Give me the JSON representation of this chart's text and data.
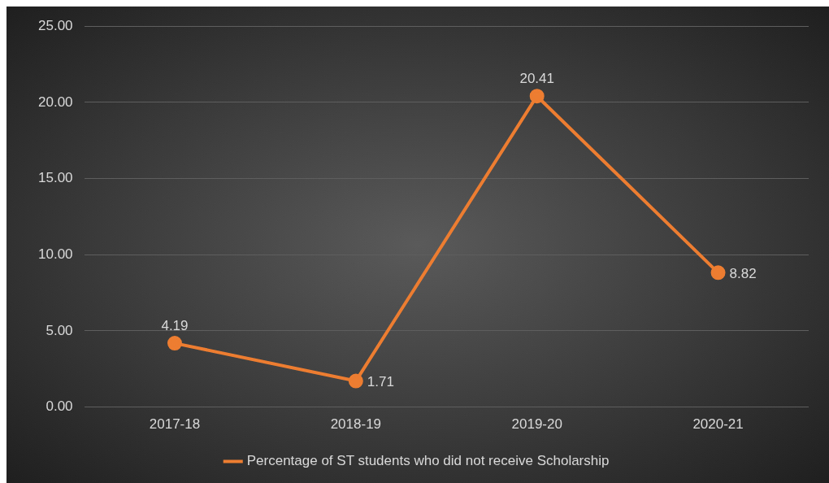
{
  "chart_data": {
    "type": "line",
    "categories": [
      "2017-18",
      "2018-19",
      "2019-20",
      "2020-21"
    ],
    "series": [
      {
        "name": "Percentage of ST students who did not receive Scholarship",
        "color": "#ed7d31",
        "values": [
          4.19,
          1.71,
          20.41,
          8.82
        ]
      }
    ],
    "ylim": [
      0,
      25
    ],
    "yticks": [
      {
        "value": 0,
        "label": "0.00"
      },
      {
        "value": 5,
        "label": "5.00"
      },
      {
        "value": 10,
        "label": "10.00"
      },
      {
        "value": 15,
        "label": "15.00"
      },
      {
        "value": 20,
        "label": "20.00"
      },
      {
        "value": 25,
        "label": "25.00"
      }
    ],
    "grid": "y",
    "legend": "bottom",
    "marker": "circle",
    "line_style": "solid",
    "data_labels": true
  }
}
